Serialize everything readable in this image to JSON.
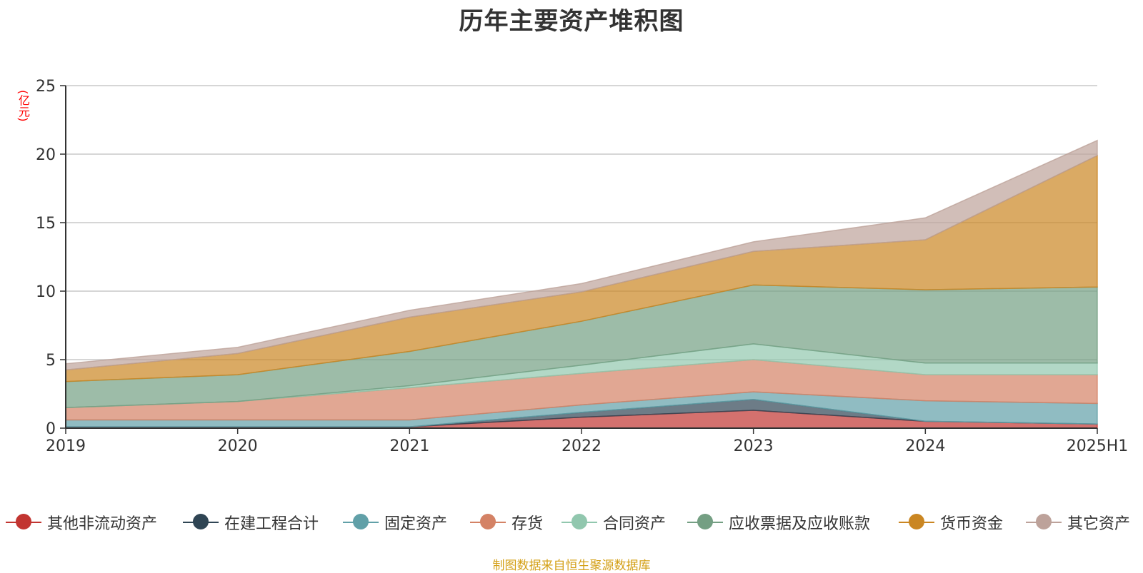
{
  "title": "历年主要资产堆积图",
  "source": "制图数据来自恒生聚源数据库",
  "chart_data": {
    "type": "area",
    "stacked": true,
    "title": "历年主要资产堆积图",
    "unit_label": "(亿元)",
    "categories": [
      "2019",
      "2020",
      "2021",
      "2022",
      "2023",
      "2024",
      "2025H1"
    ],
    "ylim": [
      0,
      25
    ],
    "yticks": [
      0,
      5,
      10,
      15,
      20,
      25
    ],
    "grid": true,
    "legend_position": "bottom",
    "series": [
      {
        "name": "其他非流动资产",
        "color": "#c23531",
        "values": [
          0.1,
          0.1,
          0.1,
          0.8,
          1.3,
          0.5,
          0.3
        ]
      },
      {
        "name": "在建工程合计",
        "color": "#2f4554",
        "values": [
          0.0,
          0.0,
          0.0,
          0.35,
          0.8,
          0.0,
          0.0
        ]
      },
      {
        "name": "固定资产",
        "color": "#61a0a8",
        "values": [
          0.5,
          0.5,
          0.5,
          0.55,
          0.55,
          1.5,
          1.5
        ]
      },
      {
        "name": "存货",
        "color": "#d48265",
        "values": [
          0.9,
          1.35,
          2.35,
          2.3,
          2.35,
          1.9,
          2.1
        ]
      },
      {
        "name": "合同资产",
        "color": "#91c7ae",
        "values": [
          0.0,
          0.0,
          0.15,
          0.6,
          1.15,
          0.85,
          0.85
        ]
      },
      {
        "name": "应收票据及应收账款",
        "color": "#749f83",
        "values": [
          1.9,
          1.95,
          2.5,
          3.2,
          4.3,
          5.35,
          5.55
        ]
      },
      {
        "name": "货币资金",
        "color": "#ca8622",
        "values": [
          0.85,
          1.55,
          2.5,
          2.15,
          2.45,
          3.65,
          9.6
        ]
      },
      {
        "name": "其它资产",
        "color": "#bda29a",
        "values": [
          0.45,
          0.45,
          0.5,
          0.6,
          0.7,
          1.6,
          1.1
        ]
      }
    ]
  }
}
